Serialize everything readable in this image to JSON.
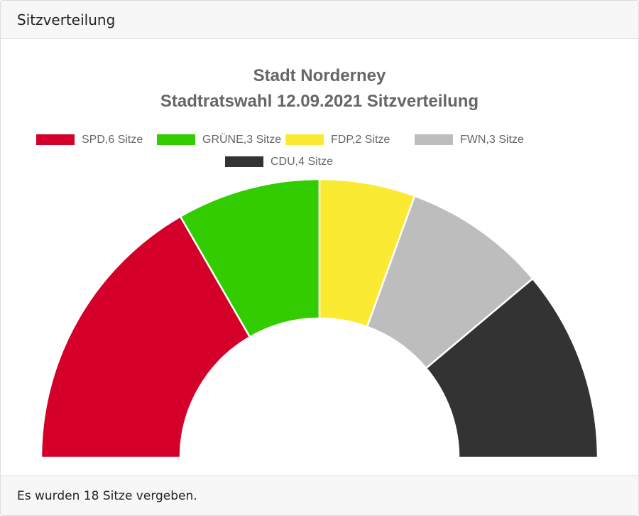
{
  "header": {
    "title": "Sitzverteilung"
  },
  "footer": {
    "text": "Es wurden 18 Sitze vergeben."
  },
  "chart_data": {
    "type": "pie",
    "variant": "half-doughnut",
    "title": [
      "Stadt Norderney",
      "Stadtratswahl 12.09.2021 Sitzverteilung"
    ],
    "legend_position": "top",
    "total_seats": 18,
    "categories": [
      "SPD",
      "GRÜNE",
      "FDP",
      "FWN",
      "CDU"
    ],
    "legend_labels": [
      "SPD,6 Sitze",
      "GRÜNE,3 Sitze",
      "FDP,2 Sitze",
      "FWN,3 Sitze",
      "CDU,4 Sitze"
    ],
    "values": [
      6,
      3,
      2,
      3,
      4
    ],
    "colors": [
      "#d40029",
      "#33cc00",
      "#faeb32",
      "#bdbdbd",
      "#333333"
    ]
  }
}
